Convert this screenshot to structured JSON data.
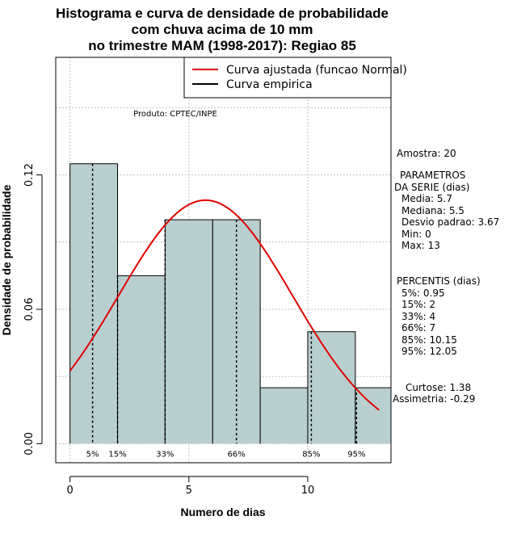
{
  "chart_data": {
    "type": "histogram",
    "title": [
      "Histograma e curva de densidade de probabilidade",
      "com chuva acima de 10 mm",
      "no trimestre MAM (1998-2017): Regiao 85"
    ],
    "xlabel": "Numero de dias",
    "ylabel": "Densidade de probabilidade",
    "xlim": [
      -0.6,
      13.5
    ],
    "ylim": [
      -0.0085,
      0.1725
    ],
    "x_ticks": [
      0,
      5,
      10
    ],
    "y_ticks": [
      0.0,
      0.06,
      0.12
    ],
    "x_tick_labels": [
      "0",
      "5",
      "10"
    ],
    "y_tick_labels": [
      "0.00",
      "0.06",
      "0.12"
    ],
    "grid": true,
    "bar_color": "#b9cfcf",
    "bins": [
      {
        "x0": 0,
        "x1": 2,
        "density": 0.125
      },
      {
        "x0": 2,
        "x1": 4,
        "density": 0.075
      },
      {
        "x0": 4,
        "x1": 6,
        "density": 0.1
      },
      {
        "x0": 6,
        "x1": 8,
        "density": 0.1
      },
      {
        "x0": 8,
        "x1": 10,
        "density": 0.025
      },
      {
        "x0": 10,
        "x1": 12,
        "density": 0.05
      },
      {
        "x0": 12,
        "x1": 14,
        "density": 0.025
      }
    ],
    "normal_curve": {
      "mean": 5.7,
      "sd": 3.67,
      "x_from": 0,
      "x_to": 13,
      "color": "#e00000"
    },
    "percentiles": [
      {
        "label": "5%",
        "value": 0.95
      },
      {
        "label": "15%",
        "value": 2
      },
      {
        "label": "33%",
        "value": 4
      },
      {
        "label": "66%",
        "value": 7
      },
      {
        "label": "85%",
        "value": 10.15
      },
      {
        "label": "95%",
        "value": 12.05
      }
    ],
    "legend": {
      "position": "top-right",
      "entries": [
        {
          "label": "Curva ajustada (funcao Normal)",
          "color": "#e00000"
        },
        {
          "label": "Curva empirica",
          "color": "#000000"
        }
      ]
    },
    "produto": "Produto: CPTEC/INPE"
  },
  "stats": {
    "amostra": "Amostra: 20",
    "parametros_title_1": "PARAMETROS",
    "parametros_title_2": "DA SERIE (dias)",
    "media": "Media: 5.7",
    "mediana": "Mediana: 5.5",
    "desvio": "Desvio padrao: 3.67",
    "min": "Min: 0",
    "max": "Max: 13",
    "percentis_title": "PERCENTIS (dias)",
    "p5": "5%: 0.95",
    "p15": "15%: 2",
    "p33": "33%: 4",
    "p66": "66%: 7",
    "p85": "85%: 10.15",
    "p95": "95%: 12.05",
    "curtose": "Curtose: 1.38",
    "assimetria": "Assimetria: -0.29"
  }
}
